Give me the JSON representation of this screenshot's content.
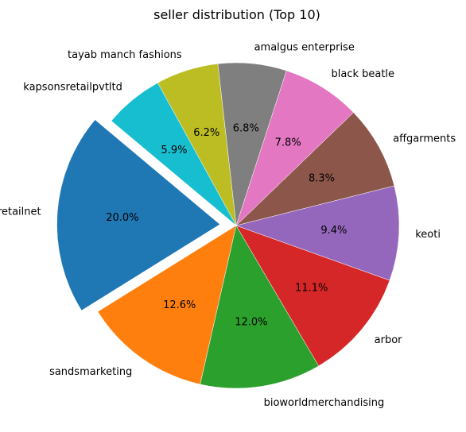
{
  "chart_data": {
    "type": "pie",
    "title": "seller distribution (Top 10)",
    "categories": [
      "retailnet",
      "sandsmarketing",
      "bioworldmerchandising",
      "arbor",
      "keoti",
      "affgarments",
      "black beatle",
      "amalgus enterprise",
      "tayab manch fashions",
      "kapsonsretailpvtltd"
    ],
    "values": [
      20.0,
      12.6,
      12.0,
      11.1,
      9.4,
      8.3,
      7.8,
      6.8,
      6.2,
      5.9
    ],
    "value_labels": [
      "20.0%",
      "12.6%",
      "12.0%",
      "11.1%",
      "9.4%",
      "8.3%",
      "7.8%",
      "6.8%",
      "6.2%",
      "5.9%"
    ],
    "colors": [
      "#1f77b4",
      "#ff7f0e",
      "#2ca02c",
      "#d62728",
      "#9467bd",
      "#8c564b",
      "#e377c2",
      "#7f7f7f",
      "#bcbd22",
      "#17becf"
    ],
    "explode": [
      0.1,
      0,
      0,
      0,
      0,
      0,
      0,
      0,
      0,
      0
    ],
    "start_angle": 140,
    "direction": "counterclockwise"
  }
}
